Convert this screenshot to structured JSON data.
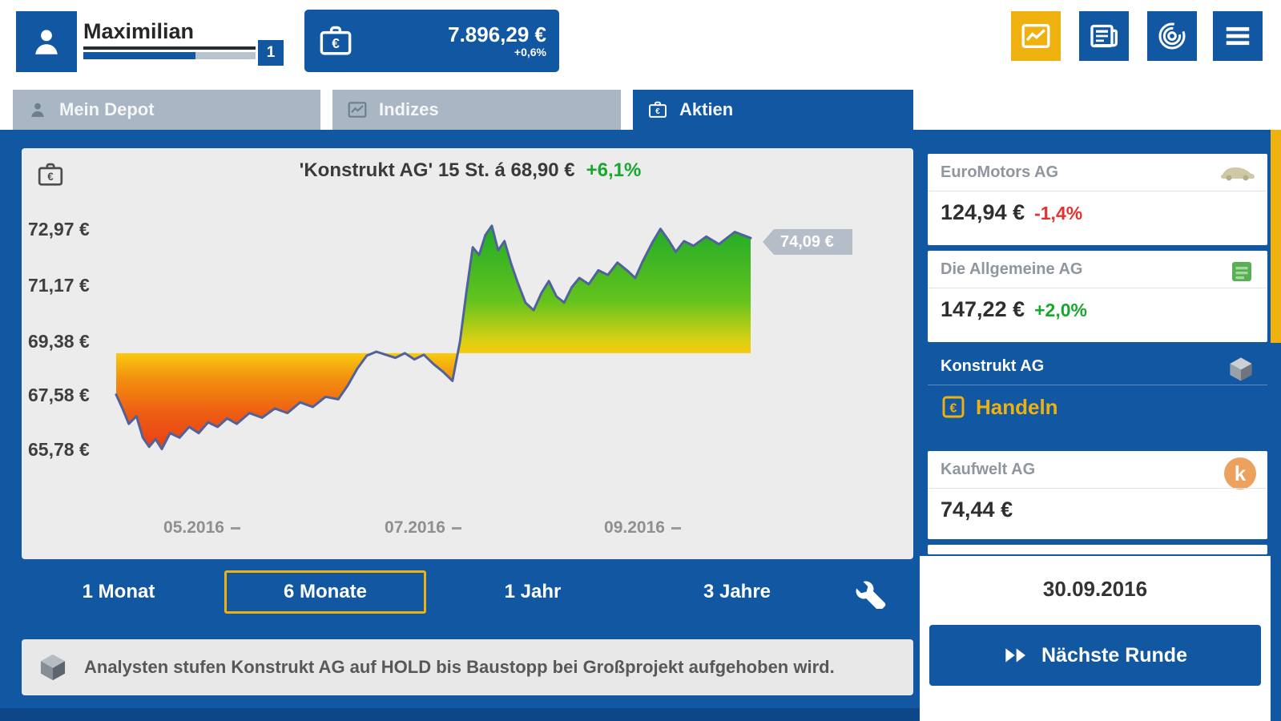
{
  "topbar": {
    "player": {
      "name": "Maximilian",
      "level": "1"
    },
    "portfolio": {
      "value": "7.896,29 €",
      "change": "+0,6%"
    }
  },
  "tabs": [
    {
      "label": "Mein Depot"
    },
    {
      "label": "Indizes"
    },
    {
      "label": "Aktien",
      "active": true
    }
  ],
  "chart": {
    "title": "'Konstrukt AG'  15 St.  á  68,90 €",
    "title_change": "+6,1%",
    "current_tag": "74,09 €",
    "y_ticks": [
      "72,97 €",
      "71,17 €",
      "69,38 €",
      "67,58 €",
      "65,78 €"
    ],
    "x_ticks": [
      "05.2016",
      "07.2016",
      "09.2016"
    ]
  },
  "chart_data": {
    "type": "area",
    "name": "Konstrukt AG",
    "unit": "EUR",
    "holding": "15 St.",
    "buy_price": 68.9,
    "current_value": 74.09,
    "change_percent": "+6,1%",
    "y_ticks": [
      72.97,
      71.17,
      69.38,
      67.58,
      65.78
    ],
    "x_ticks": [
      "05.2016",
      "07.2016",
      "09.2016"
    ],
    "y_domain": [
      65.01,
      73.62
    ],
    "baseline": 68.9,
    "points": [
      [
        0.0,
        67.55
      ],
      [
        0.01,
        67.1
      ],
      [
        0.02,
        66.6
      ],
      [
        0.032,
        66.85
      ],
      [
        0.042,
        66.15
      ],
      [
        0.052,
        65.85
      ],
      [
        0.062,
        66.1
      ],
      [
        0.072,
        65.78
      ],
      [
        0.085,
        66.3
      ],
      [
        0.1,
        66.15
      ],
      [
        0.115,
        66.5
      ],
      [
        0.13,
        66.3
      ],
      [
        0.145,
        66.65
      ],
      [
        0.16,
        66.5
      ],
      [
        0.175,
        66.78
      ],
      [
        0.19,
        66.6
      ],
      [
        0.21,
        66.95
      ],
      [
        0.23,
        66.8
      ],
      [
        0.25,
        67.1
      ],
      [
        0.27,
        66.95
      ],
      [
        0.29,
        67.3
      ],
      [
        0.31,
        67.15
      ],
      [
        0.33,
        67.48
      ],
      [
        0.35,
        67.4
      ],
      [
        0.365,
        67.85
      ],
      [
        0.38,
        68.4
      ],
      [
        0.395,
        68.82
      ],
      [
        0.41,
        68.95
      ],
      [
        0.425,
        68.85
      ],
      [
        0.44,
        68.75
      ],
      [
        0.455,
        68.9
      ],
      [
        0.47,
        68.7
      ],
      [
        0.485,
        68.85
      ],
      [
        0.5,
        68.55
      ],
      [
        0.515,
        68.3
      ],
      [
        0.53,
        68.0
      ],
      [
        0.542,
        69.3
      ],
      [
        0.552,
        70.9
      ],
      [
        0.562,
        72.35
      ],
      [
        0.572,
        72.1
      ],
      [
        0.582,
        72.75
      ],
      [
        0.592,
        73.05
      ],
      [
        0.602,
        72.25
      ],
      [
        0.612,
        72.55
      ],
      [
        0.622,
        71.85
      ],
      [
        0.632,
        71.25
      ],
      [
        0.645,
        70.55
      ],
      [
        0.658,
        70.3
      ],
      [
        0.67,
        70.85
      ],
      [
        0.682,
        71.25
      ],
      [
        0.694,
        70.75
      ],
      [
        0.706,
        70.55
      ],
      [
        0.718,
        71.05
      ],
      [
        0.73,
        71.35
      ],
      [
        0.745,
        71.15
      ],
      [
        0.76,
        71.6
      ],
      [
        0.775,
        71.45
      ],
      [
        0.79,
        71.85
      ],
      [
        0.805,
        71.6
      ],
      [
        0.818,
        71.35
      ],
      [
        0.83,
        71.9
      ],
      [
        0.845,
        72.5
      ],
      [
        0.858,
        72.95
      ],
      [
        0.87,
        72.6
      ],
      [
        0.882,
        72.2
      ],
      [
        0.895,
        72.55
      ],
      [
        0.91,
        72.4
      ],
      [
        0.93,
        72.7
      ],
      [
        0.95,
        72.45
      ],
      [
        0.975,
        72.85
      ],
      [
        1.0,
        72.65
      ]
    ]
  },
  "periods": {
    "items": [
      "1 Monat",
      "6 Monate",
      "1 Jahr",
      "3 Jahre"
    ],
    "selected": "6 Monate"
  },
  "news": {
    "text": "Analysten stufen Konstrukt AG auf HOLD bis Baustopp bei Großprojekt aufgehoben wird."
  },
  "watchlist": [
    {
      "name": "EuroMotors AG",
      "price": "124,94 €",
      "change": "-1,4%",
      "direction": "down",
      "icon": "car-icon"
    },
    {
      "name": "Die Allgemeine AG",
      "price": "147,22 €",
      "change": "+2,0%",
      "direction": "up",
      "icon": "money-icon"
    },
    {
      "name": "Konstrukt AG",
      "action": "Handeln",
      "selected": true,
      "icon": "cube-icon"
    },
    {
      "name": "Kaufwelt AG",
      "price": "74,44 €",
      "icon": "k-logo-icon",
      "icon_letter": "k"
    }
  ],
  "round": {
    "date": "30.09.2016",
    "next_button": "Nächste Runde"
  },
  "icons": {
    "euro": "€"
  },
  "colors": {
    "primary_blue": "#1257a2",
    "accent_yellow": "#efb110",
    "gain_green": "#17a82e",
    "loss_red": "#e23131",
    "tab_gray": "#a9b6c3"
  }
}
